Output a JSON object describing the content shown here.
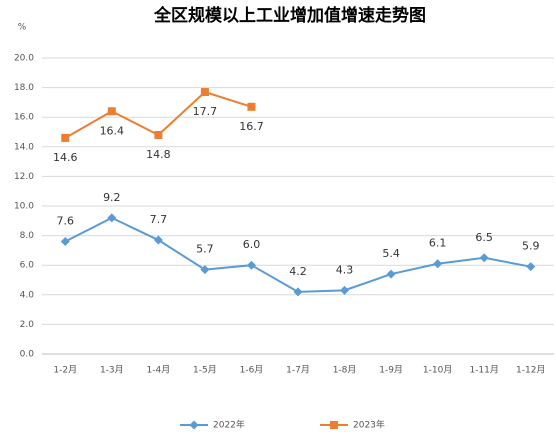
{
  "chart_data": {
    "type": "line",
    "title": "全区规模以上工业增加值增速走势图",
    "y_label": "%",
    "categories": [
      "1-2月",
      "1-3月",
      "1-4月",
      "1-5月",
      "1-6月",
      "1-7月",
      "1-8月",
      "1-9月",
      "1-10月",
      "1-11月",
      "1-12月"
    ],
    "series": [
      {
        "name": "2022年",
        "color": "#5b9bd5",
        "marker": "diamond",
        "values": [
          7.6,
          9.2,
          7.7,
          5.7,
          6.0,
          4.2,
          4.3,
          5.4,
          6.1,
          6.5,
          5.9
        ],
        "value_labels": [
          "7.6",
          "9.2",
          "7.7",
          "5.7",
          "6.0",
          "4.2",
          "4.3",
          "5.4",
          "6.1",
          "6.5",
          "5.9"
        ],
        "label_position": "above"
      },
      {
        "name": "2023年",
        "color": "#ed7d31",
        "marker": "square",
        "values": [
          14.6,
          16.4,
          14.8,
          17.7,
          16.7,
          null,
          null,
          null,
          null,
          null,
          null
        ],
        "value_labels": [
          "14.6",
          "16.4",
          "14.8",
          "17.7",
          "16.7",
          null,
          null,
          null,
          null,
          null,
          null
        ],
        "label_position": "below"
      }
    ],
    "ylim": [
      0,
      20
    ],
    "yticks": [
      {
        "value": 0,
        "label": "0.0"
      },
      {
        "value": 2,
        "label": "2.0"
      },
      {
        "value": 4,
        "label": "4.0"
      },
      {
        "value": 6,
        "label": "6.0"
      },
      {
        "value": 8,
        "label": "8.0"
      },
      {
        "value": 10,
        "label": "10.0"
      },
      {
        "value": 12,
        "label": "12.0"
      },
      {
        "value": 14,
        "label": "14.0"
      },
      {
        "value": 16,
        "label": "16.0"
      },
      {
        "value": 18,
        "label": "18.0"
      },
      {
        "value": 20,
        "label": "20.0"
      }
    ],
    "grid": true,
    "legend": "bottom"
  }
}
